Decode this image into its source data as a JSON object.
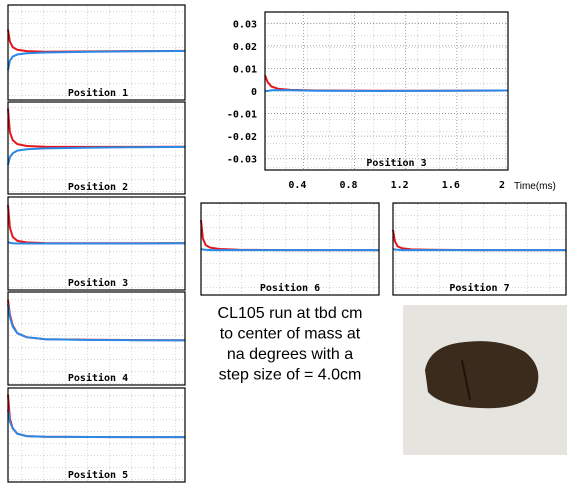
{
  "chart_data": [
    {
      "type": "line",
      "title": "Position 1",
      "xlim": [
        0.1,
        2.0
      ],
      "ylim": [
        -0.035,
        0.035
      ],
      "x": [
        0.1,
        0.12,
        0.15,
        0.2,
        0.3,
        0.5,
        1.0,
        1.5,
        2.0
      ],
      "series": [
        {
          "color": "#e8141c",
          "values": [
            0.017,
            0.008,
            0.004,
            0.002,
            0.001,
            0.0005,
            0.0008,
            0.001,
            0.0012
          ]
        },
        {
          "color": "#2b8ae6",
          "values": [
            -0.013,
            -0.006,
            -0.003,
            -0.0015,
            -0.0005,
            0.0,
            0.0006,
            0.0009,
            0.0011
          ]
        }
      ]
    },
    {
      "type": "line",
      "title": "Position 2",
      "xlim": [
        0.1,
        2.0
      ],
      "ylim": [
        -0.035,
        0.035
      ],
      "x": [
        0.1,
        0.12,
        0.15,
        0.2,
        0.3,
        0.5,
        1.0,
        1.5,
        2.0
      ],
      "series": [
        {
          "color": "#e8141c",
          "values": [
            0.03,
            0.012,
            0.006,
            0.003,
            0.0015,
            0.001,
            0.0008,
            0.0008,
            0.001
          ]
        },
        {
          "color": "#2b8ae6",
          "values": [
            -0.013,
            -0.007,
            -0.004,
            -0.002,
            -0.001,
            -0.0003,
            0.0003,
            0.0006,
            0.0008
          ]
        }
      ]
    },
    {
      "type": "line",
      "title": "Position 3",
      "xlim": [
        0.1,
        2.0
      ],
      "ylim": [
        -0.035,
        0.035
      ],
      "x": [
        0.1,
        0.12,
        0.15,
        0.2,
        0.3,
        0.5,
        1.0,
        1.5,
        2.0
      ],
      "series": [
        {
          "color": "#e8141c",
          "values": [
            0.029,
            0.012,
            0.005,
            0.002,
            0.0008,
            0.0003,
            0.0002,
            0.0002,
            0.0003
          ]
        },
        {
          "color": "#2b8ae6",
          "values": [
            0.001,
            0.0005,
            0.0002,
            0.0,
            0.0,
            0.0,
            0.0,
            0.0,
            0.0002
          ]
        }
      ]
    },
    {
      "type": "line",
      "title": "Position 4",
      "xlim": [
        0.1,
        2.0
      ],
      "ylim": [
        -0.035,
        0.035
      ],
      "x": [
        0.1,
        0.12,
        0.15,
        0.2,
        0.3,
        0.5,
        1.0,
        1.5,
        2.0
      ],
      "series": [
        {
          "color": "#e8141c",
          "values": [
            0.029,
            0.018,
            0.01,
            0.004,
            0.001,
            -0.0005,
            -0.001,
            -0.0012,
            -0.0013
          ]
        },
        {
          "color": "#2b8ae6",
          "values": [
            0.026,
            0.016,
            0.009,
            0.004,
            0.001,
            -0.0006,
            -0.0011,
            -0.0013,
            -0.0014
          ]
        }
      ]
    },
    {
      "type": "line",
      "title": "Position 5",
      "xlim": [
        0.1,
        2.0
      ],
      "ylim": [
        -0.035,
        0.035
      ],
      "x": [
        0.1,
        0.12,
        0.15,
        0.2,
        0.3,
        0.5,
        1.0,
        1.5,
        2.0
      ],
      "series": [
        {
          "color": "#e8141c",
          "values": [
            0.03,
            0.012,
            0.005,
            0.001,
            -0.0008,
            -0.0013,
            -0.0015,
            -0.0016,
            -0.0016
          ]
        },
        {
          "color": "#2b8ae6",
          "values": [
            0.019,
            0.01,
            0.005,
            0.001,
            -0.0008,
            -0.0013,
            -0.0015,
            -0.0016,
            -0.0016
          ]
        }
      ]
    },
    {
      "type": "line",
      "title": "Position 3",
      "xlabel": "Time(ms)",
      "xlim": [
        0.1,
        2.0
      ],
      "ylim": [
        -0.035,
        0.035
      ],
      "xticks": [
        0.4,
        0.8,
        1.2,
        1.6,
        2
      ],
      "yticks": [
        0.03,
        0.02,
        0.01,
        0,
        -0.01,
        -0.02,
        -0.03
      ],
      "grid": true,
      "x": [
        0.1,
        0.12,
        0.15,
        0.2,
        0.3,
        0.5,
        1.0,
        1.5,
        2.0
      ],
      "series": [
        {
          "color": "#e8141c",
          "values": [
            0.007,
            0.004,
            0.002,
            0.001,
            0.0005,
            0.0002,
            0.0001,
            0.0001,
            0.0002
          ]
        },
        {
          "color": "#2b8ae6",
          "values": [
            0.0,
            0.0,
            0.0003,
            0.0004,
            0.0003,
            0.0001,
            0.0,
            0.0001,
            0.0002
          ]
        }
      ]
    },
    {
      "type": "line",
      "title": "Position 6",
      "xlim": [
        0.1,
        2.0
      ],
      "ylim": [
        -0.035,
        0.035
      ],
      "x": [
        0.1,
        0.12,
        0.15,
        0.2,
        0.3,
        0.5,
        1.0,
        1.5,
        2.0
      ],
      "series": [
        {
          "color": "#e8141c",
          "values": [
            0.022,
            0.008,
            0.003,
            0.001,
            0.0,
            -0.0006,
            -0.0008,
            -0.0008,
            -0.0008
          ]
        },
        {
          "color": "#2b8ae6",
          "values": [
            0.0,
            -0.0004,
            -0.0006,
            -0.0008,
            -0.0008,
            -0.0008,
            -0.0008,
            -0.0008,
            -0.0008
          ]
        }
      ]
    },
    {
      "type": "line",
      "title": "Position 7",
      "xlim": [
        0.1,
        2.0
      ],
      "ylim": [
        -0.035,
        0.035
      ],
      "x": [
        0.1,
        0.12,
        0.15,
        0.2,
        0.3,
        0.5,
        1.0,
        1.5,
        2.0
      ],
      "series": [
        {
          "color": "#e8141c",
          "values": [
            0.0145,
            0.006,
            0.002,
            0.0005,
            -0.0003,
            -0.0006,
            -0.0008,
            -0.0008,
            -0.0008
          ]
        },
        {
          "color": "#2b8ae6",
          "values": [
            0.0,
            -0.0004,
            -0.0006,
            -0.0008,
            -0.0008,
            -0.0008,
            -0.0008,
            -0.0008,
            -0.0008
          ]
        }
      ]
    }
  ],
  "caption": [
    "CL105 run at tbd cm",
    "to center of mass at",
    "na degrees with a",
    "step size of = 4.0cm"
  ]
}
